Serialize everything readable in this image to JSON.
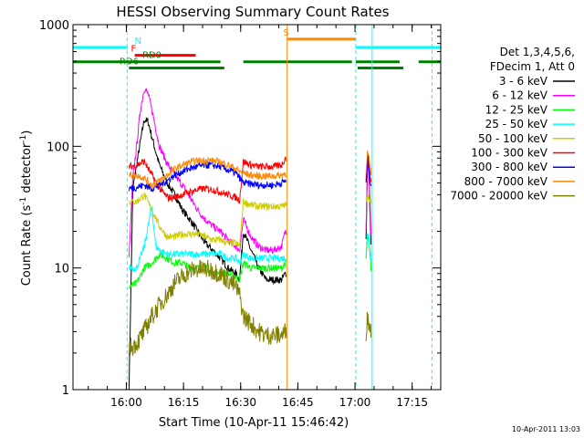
{
  "chart_data": {
    "type": "line",
    "title": "HESSI Observing Summary Count Rates",
    "xlabel": "Start Time (10-Apr-11 15:46:42)",
    "ylabel_main": "Count Rate (s",
    "ylabel_sup1": "-1",
    "ylabel_mid": " detector",
    "ylabel_sup2": "-1",
    "ylabel_end": ")",
    "timestamp": "10-Apr-2011 13:03",
    "x_range_min": [
      -0.7,
      95.8
    ],
    "ylim": [
      1,
      1000
    ],
    "y_scale": "log",
    "x_ticks": [
      {
        "label": "16:00",
        "t": 13.3
      },
      {
        "label": "16:15",
        "t": 28.3
      },
      {
        "label": "16:30",
        "t": 43.3
      },
      {
        "label": "16:45",
        "t": 58.3
      },
      {
        "label": "17:00",
        "t": 73.3
      },
      {
        "label": "17:15",
        "t": 88.3
      }
    ],
    "y_ticks": [
      {
        "label": "1",
        "v": 1
      },
      {
        "label": "10",
        "v": 10
      },
      {
        "label": "100",
        "v": 100
      },
      {
        "label": "1000",
        "v": 1000
      }
    ],
    "legend": {
      "header": [
        "Det 1,3,4,5,6,",
        "FDecim 1, Att 0"
      ],
      "placement": "right",
      "entries": [
        {
          "label": "3 - 6 keV",
          "color": "#000000"
        },
        {
          "label": "6 - 12 keV",
          "color": "#ff00ff"
        },
        {
          "label": "12 - 25 keV",
          "color": "#00ff00"
        },
        {
          "label": "25 - 50 keV",
          "color": "#00ffff"
        },
        {
          "label": "50 - 100 keV",
          "color": "#cccc00"
        },
        {
          "label": "100 - 300 keV",
          "color": "#ff0000"
        },
        {
          "label": "300 - 800 keV",
          "color": "#0000ff"
        },
        {
          "label": "800 - 7000 keV",
          "color": "#ff8800"
        },
        {
          "label": "7000 - 20000 keV",
          "color": "#808000"
        }
      ]
    },
    "flags": [
      {
        "label": "N",
        "color": "#00ffff",
        "level": 650,
        "segments": [
          [
            -0.7,
            13.5
          ],
          [
            73.5,
            95.8
          ]
        ]
      },
      {
        "label": "F",
        "color": "#ff0000",
        "level": 560,
        "segments": [
          [
            15.5,
            31.5
          ]
        ]
      },
      {
        "label": "S",
        "color": "#ff8800",
        "level": 760,
        "segments": [
          [
            55.5,
            73.5
          ]
        ]
      },
      {
        "label": "RD0",
        "color": "#008000",
        "level": 495,
        "segments": [
          [
            -0.7,
            38
          ],
          [
            44,
            72.5
          ],
          [
            73.5,
            85
          ],
          [
            90,
            95.8
          ]
        ]
      },
      {
        "label": "RD6",
        "color": "#008000",
        "level": 440,
        "segments": [
          [
            14,
            39
          ],
          [
            74,
            86
          ]
        ]
      }
    ],
    "label_positions_t": {
      "N": 15.5,
      "F": 14.5,
      "S": 54.5,
      "RD0": 17.5,
      "RD6": 11.5
    },
    "vlines": [
      {
        "t": -0.7,
        "color": "#00ffff",
        "dash": false
      },
      {
        "t": 13.5,
        "color": "#00ffff",
        "dash": true
      },
      {
        "t": 55.5,
        "color": "#ff8800",
        "dash": false
      },
      {
        "t": 73.5,
        "color": "#00ffff",
        "dash": true
      },
      {
        "t": 77.8,
        "color": "#00ffff",
        "dash": false
      },
      {
        "t": 93.5,
        "color": "#00ffff",
        "dash": true
      }
    ],
    "segment1_t": [
      14,
      55.3
    ],
    "segment2_t": [
      76.2,
      77.5
    ],
    "series": [
      {
        "label": "3 - 6 keV",
        "color": "#000000",
        "points": [
          [
            14,
            1
          ],
          [
            15,
            45
          ],
          [
            16,
            70
          ],
          [
            17,
            110
          ],
          [
            18,
            165
          ],
          [
            19,
            160
          ],
          [
            20,
            120
          ],
          [
            21,
            90
          ],
          [
            22,
            70
          ],
          [
            24,
            50
          ],
          [
            26,
            40
          ],
          [
            28,
            30
          ],
          [
            30,
            25
          ],
          [
            32,
            20
          ],
          [
            34,
            16
          ],
          [
            36,
            14
          ],
          [
            38,
            12
          ],
          [
            40,
            10
          ],
          [
            42,
            9
          ],
          [
            43,
            8
          ],
          [
            44,
            20
          ],
          [
            46,
            14
          ],
          [
            48,
            10
          ],
          [
            50,
            8
          ],
          [
            52,
            8
          ],
          [
            54,
            8
          ],
          [
            55,
            9
          ]
        ],
        "points2": [
          [
            76.2,
            17
          ],
          [
            76.6,
            80
          ],
          [
            77,
            55
          ],
          [
            77.5,
            15
          ]
        ]
      },
      {
        "label": "6 - 12 keV",
        "color": "#ff00ff",
        "points": [
          [
            14,
            12
          ],
          [
            15,
            55
          ],
          [
            16,
            100
          ],
          [
            17,
            200
          ],
          [
            18,
            300
          ],
          [
            19,
            270
          ],
          [
            20,
            200
          ],
          [
            21,
            140
          ],
          [
            22,
            100
          ],
          [
            24,
            72
          ],
          [
            26,
            58
          ],
          [
            28,
            48
          ],
          [
            30,
            38
          ],
          [
            32,
            30
          ],
          [
            34,
            25
          ],
          [
            36,
            22
          ],
          [
            38,
            20
          ],
          [
            40,
            17
          ],
          [
            42,
            15
          ],
          [
            43,
            14
          ],
          [
            44,
            25
          ],
          [
            46,
            18
          ],
          [
            48,
            15
          ],
          [
            50,
            14
          ],
          [
            52,
            14
          ],
          [
            54,
            15
          ],
          [
            55,
            20
          ]
        ],
        "points2": [
          [
            76.2,
            22
          ],
          [
            76.6,
            85
          ],
          [
            77,
            65
          ],
          [
            77.5,
            18
          ]
        ]
      },
      {
        "label": "12 - 25 keV",
        "color": "#00ff00",
        "points": [
          [
            14,
            7
          ],
          [
            16,
            7.5
          ],
          [
            18,
            10
          ],
          [
            20,
            11
          ],
          [
            22,
            13
          ],
          [
            24,
            12
          ],
          [
            26,
            11
          ],
          [
            28,
            11
          ],
          [
            30,
            10
          ],
          [
            32,
            10
          ],
          [
            34,
            10
          ],
          [
            36,
            9
          ],
          [
            38,
            9
          ],
          [
            40,
            9
          ],
          [
            42,
            8.5
          ],
          [
            43,
            8
          ],
          [
            44,
            11
          ],
          [
            46,
            10
          ],
          [
            48,
            10
          ],
          [
            50,
            10
          ],
          [
            52,
            10
          ],
          [
            54,
            10
          ],
          [
            55,
            11
          ]
        ],
        "points2": [
          [
            76.2,
            12
          ],
          [
            76.6,
            18
          ],
          [
            77,
            16
          ],
          [
            77.5,
            10
          ]
        ]
      },
      {
        "label": "25 - 50 keV",
        "color": "#00ffff",
        "points": [
          [
            14,
            10
          ],
          [
            16,
            10
          ],
          [
            18,
            15
          ],
          [
            20,
            32
          ],
          [
            21,
            15
          ],
          [
            22,
            14
          ],
          [
            24,
            13
          ],
          [
            26,
            13
          ],
          [
            28,
            13
          ],
          [
            30,
            13
          ],
          [
            32,
            13
          ],
          [
            34,
            13
          ],
          [
            36,
            13
          ],
          [
            38,
            13
          ],
          [
            40,
            12
          ],
          [
            42,
            12
          ],
          [
            43,
            11
          ],
          [
            44,
            13
          ],
          [
            46,
            12
          ],
          [
            48,
            12
          ],
          [
            50,
            12
          ],
          [
            52,
            12
          ],
          [
            54,
            12
          ],
          [
            55,
            12
          ]
        ],
        "points2": [
          [
            76.2,
            13
          ],
          [
            76.6,
            20
          ],
          [
            77,
            18
          ],
          [
            77.5,
            12
          ]
        ]
      },
      {
        "label": "50 - 100 keV",
        "color": "#cccc00",
        "points": [
          [
            14,
            35
          ],
          [
            16,
            35
          ],
          [
            18,
            40
          ],
          [
            20,
            30
          ],
          [
            22,
            22
          ],
          [
            24,
            18
          ],
          [
            26,
            18
          ],
          [
            28,
            19
          ],
          [
            30,
            19
          ],
          [
            32,
            19
          ],
          [
            34,
            18
          ],
          [
            36,
            17
          ],
          [
            38,
            17
          ],
          [
            40,
            16
          ],
          [
            42,
            16
          ],
          [
            43,
            15
          ],
          [
            44,
            35
          ],
          [
            46,
            33
          ],
          [
            48,
            32
          ],
          [
            50,
            32
          ],
          [
            52,
            32
          ],
          [
            54,
            32
          ],
          [
            55,
            33
          ]
        ],
        "points2": [
          [
            76.2,
            35
          ],
          [
            76.6,
            40
          ],
          [
            77,
            38
          ],
          [
            77.5,
            33
          ]
        ]
      },
      {
        "label": "100 - 300 keV",
        "color": "#ff0000",
        "points": [
          [
            14,
            68
          ],
          [
            16,
            70
          ],
          [
            18,
            75
          ],
          [
            20,
            58
          ],
          [
            22,
            45
          ],
          [
            24,
            38
          ],
          [
            26,
            38
          ],
          [
            28,
            40
          ],
          [
            30,
            42
          ],
          [
            32,
            44
          ],
          [
            34,
            45
          ],
          [
            36,
            44
          ],
          [
            38,
            42
          ],
          [
            40,
            40
          ],
          [
            42,
            38
          ],
          [
            43,
            36
          ],
          [
            44,
            75
          ],
          [
            46,
            70
          ],
          [
            48,
            68
          ],
          [
            50,
            68
          ],
          [
            52,
            68
          ],
          [
            54,
            70
          ],
          [
            55,
            80
          ]
        ],
        "points2": [
          [
            76.2,
            50
          ],
          [
            76.6,
            90
          ],
          [
            77,
            70
          ],
          [
            77.5,
            50
          ]
        ]
      },
      {
        "label": "300 - 800 keV",
        "color": "#0000ff",
        "points": [
          [
            14,
            45
          ],
          [
            16,
            46
          ],
          [
            18,
            48
          ],
          [
            20,
            45
          ],
          [
            22,
            48
          ],
          [
            24,
            52
          ],
          [
            26,
            58
          ],
          [
            28,
            62
          ],
          [
            30,
            66
          ],
          [
            32,
            68
          ],
          [
            34,
            70
          ],
          [
            36,
            70
          ],
          [
            38,
            68
          ],
          [
            40,
            64
          ],
          [
            42,
            60
          ],
          [
            43,
            55
          ],
          [
            44,
            50
          ],
          [
            46,
            49
          ],
          [
            48,
            48
          ],
          [
            50,
            48
          ],
          [
            52,
            48
          ],
          [
            54,
            50
          ],
          [
            55,
            52
          ]
        ],
        "points2": [
          [
            76.2,
            48
          ],
          [
            76.6,
            85
          ],
          [
            77,
            60
          ],
          [
            77.5,
            48
          ]
        ]
      },
      {
        "label": "800 - 7000 keV",
        "color": "#ff8800",
        "points": [
          [
            14,
            58
          ],
          [
            16,
            58
          ],
          [
            18,
            55
          ],
          [
            20,
            48
          ],
          [
            22,
            52
          ],
          [
            24,
            58
          ],
          [
            26,
            65
          ],
          [
            28,
            70
          ],
          [
            30,
            74
          ],
          [
            32,
            76
          ],
          [
            34,
            77
          ],
          [
            36,
            76
          ],
          [
            38,
            74
          ],
          [
            40,
            70
          ],
          [
            42,
            66
          ],
          [
            43,
            62
          ],
          [
            44,
            60
          ],
          [
            46,
            58
          ],
          [
            48,
            57
          ],
          [
            50,
            57
          ],
          [
            52,
            57
          ],
          [
            54,
            58
          ],
          [
            55,
            60
          ]
        ],
        "points2": [
          [
            76.2,
            60
          ],
          [
            76.6,
            90
          ],
          [
            77,
            75
          ],
          [
            77.5,
            60
          ]
        ]
      },
      {
        "label": "7000 - 20000 keV",
        "color": "#808000",
        "points": [
          [
            14,
            2.2
          ],
          [
            16,
            2.4
          ],
          [
            18,
            3
          ],
          [
            20,
            4
          ],
          [
            22,
            5
          ],
          [
            24,
            6
          ],
          [
            26,
            7.5
          ],
          [
            28,
            8.5
          ],
          [
            30,
            9.5
          ],
          [
            32,
            9.8
          ],
          [
            34,
            9.8
          ],
          [
            36,
            9.5
          ],
          [
            38,
            9
          ],
          [
            40,
            8
          ],
          [
            42,
            7
          ],
          [
            43,
            6
          ],
          [
            44,
            4
          ],
          [
            46,
            3.5
          ],
          [
            48,
            3
          ],
          [
            50,
            2.8
          ],
          [
            52,
            2.8
          ],
          [
            54,
            2.8
          ],
          [
            55,
            3
          ]
        ],
        "points2": [
          [
            76.2,
            3
          ],
          [
            76.6,
            4
          ],
          [
            77,
            3.5
          ],
          [
            77.5,
            3
          ]
        ]
      }
    ]
  }
}
